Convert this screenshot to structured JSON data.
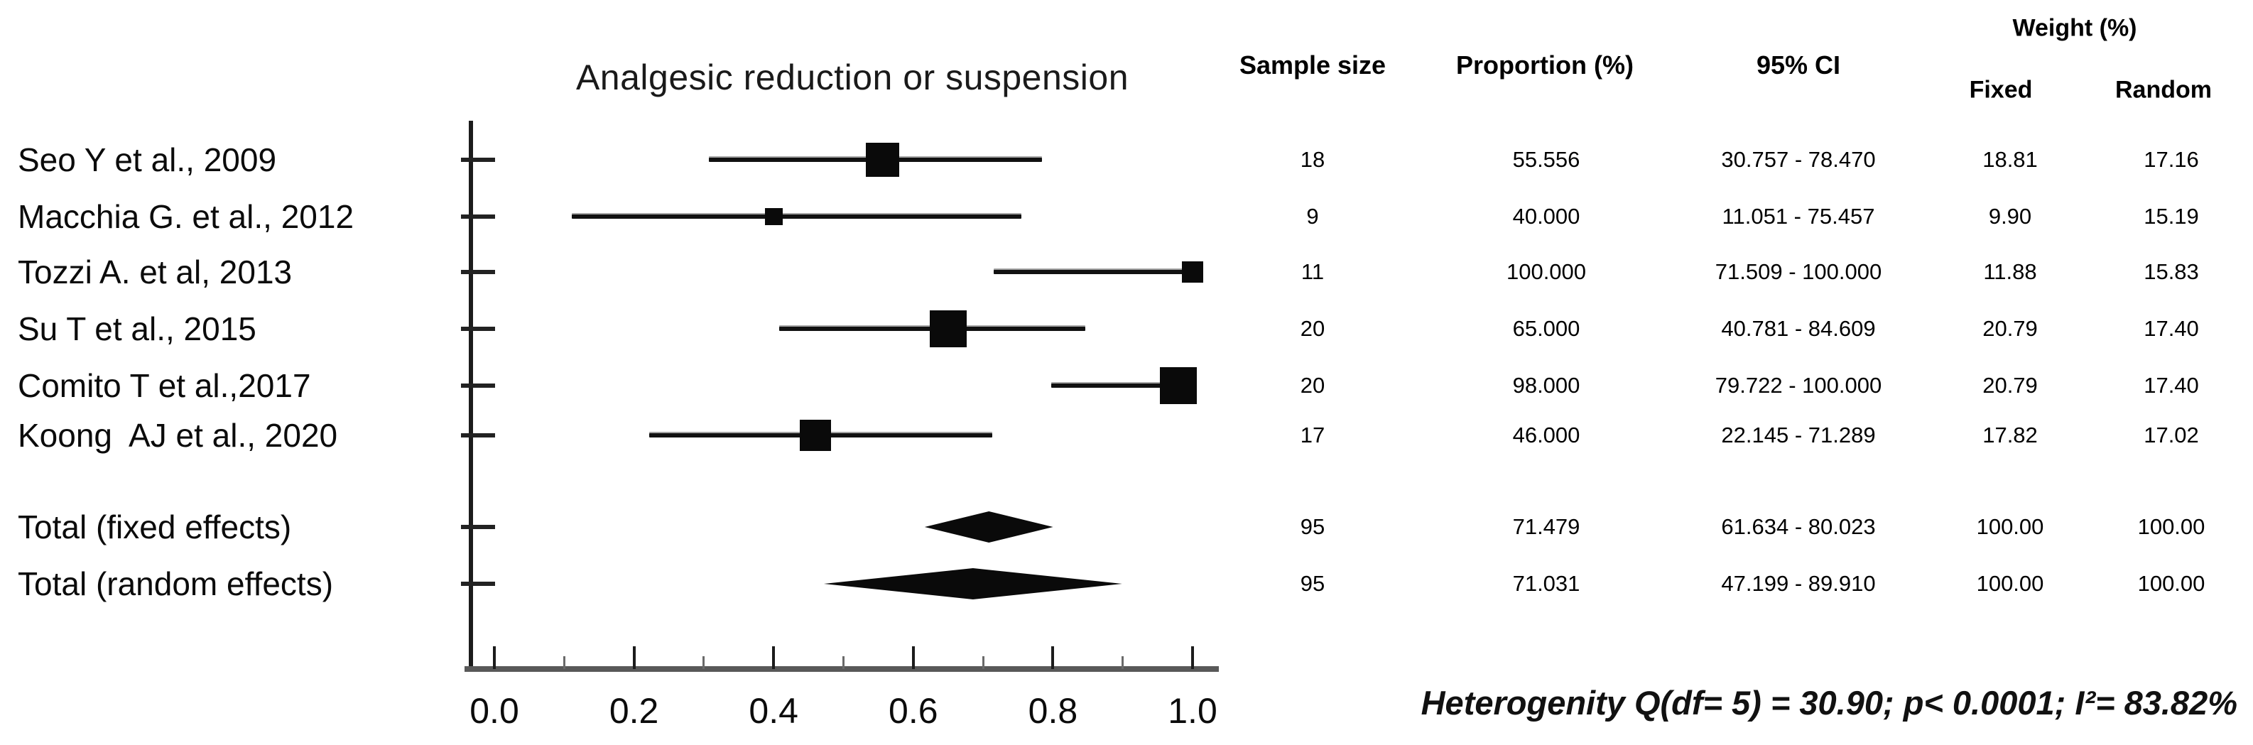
{
  "title": "Analgesic reduction or suspension",
  "table": {
    "headers": {
      "sample_size": "Sample size",
      "proportion": "Proportion (%)",
      "ci": "95% CI",
      "weight": "Weight (%)",
      "fixed": "Fixed",
      "random": "Random"
    }
  },
  "chart_data": {
    "type": "forest",
    "title": "Analgesic reduction or suspension",
    "x_axis": {
      "range": [
        0.0,
        1.0
      ],
      "major_ticks": [
        0.0,
        0.2,
        0.4,
        0.6,
        0.8,
        1.0
      ],
      "tick_labels": [
        "0.0",
        "0.2",
        "0.4",
        "0.6",
        "0.8",
        "1.0"
      ],
      "minor_ticks": [
        0.1,
        0.3,
        0.5,
        0.7,
        0.9
      ]
    },
    "studies": [
      {
        "label": "Seo Y et al., 2009",
        "sample_size": "18",
        "proportion": 55.556,
        "proportion_text": "55.556",
        "ci_low": 30.757,
        "ci_high": 78.47,
        "ci_text": "30.757 - 78.470",
        "weight_fixed": "18.81",
        "weight_random": "17.16"
      },
      {
        "label": "Macchia G. et al., 2012",
        "sample_size": "9",
        "proportion": 40.0,
        "proportion_text": "40.000",
        "ci_low": 11.051,
        "ci_high": 75.457,
        "ci_text": "11.051 - 75.457",
        "weight_fixed": "9.90",
        "weight_random": "15.19"
      },
      {
        "label": "Tozzi A. et al, 2013",
        "sample_size": "11",
        "proportion": 100.0,
        "proportion_text": "100.000",
        "ci_low": 71.509,
        "ci_high": 100.0,
        "ci_text": "71.509 - 100.000",
        "weight_fixed": "11.88",
        "weight_random": "15.83"
      },
      {
        "label": "Su T et al., 2015",
        "sample_size": "20",
        "proportion": 65.0,
        "proportion_text": "65.000",
        "ci_low": 40.781,
        "ci_high": 84.609,
        "ci_text": "40.781 - 84.609",
        "weight_fixed": "20.79",
        "weight_random": "17.40"
      },
      {
        "label": "Comito T et al.,2017",
        "sample_size": "20",
        "proportion": 98.0,
        "proportion_text": "98.000",
        "ci_low": 79.722,
        "ci_high": 100.0,
        "ci_text": "79.722 - 100.000",
        "weight_fixed": "20.79",
        "weight_random": "17.40"
      },
      {
        "label": "Koong  AJ et al., 2020",
        "sample_size": "17",
        "proportion": 46.0,
        "proportion_text": "46.000",
        "ci_low": 22.145,
        "ci_high": 71.289,
        "ci_text": "22.145 - 71.289",
        "weight_fixed": "17.82",
        "weight_random": "17.02"
      }
    ],
    "totals": [
      {
        "label": "Total (fixed effects)",
        "sample_size": "95",
        "proportion": 71.479,
        "proportion_text": "71.479",
        "ci_low": 61.634,
        "ci_high": 80.023,
        "ci_text": "61.634 - 80.023",
        "weight_fixed": "100.00",
        "weight_random": "100.00"
      },
      {
        "label": "Total (random effects)",
        "sample_size": "95",
        "proportion": 71.031,
        "proportion_text": "71.031",
        "ci_low": 47.199,
        "ci_high": 89.91,
        "ci_text": "47.199 - 89.910",
        "weight_fixed": "100.00",
        "weight_random": "100.00"
      }
    ],
    "heterogeneity": "Heterogenity Q(df= 5) = 30.90; p< 0.0001; I²= 83.82%"
  }
}
